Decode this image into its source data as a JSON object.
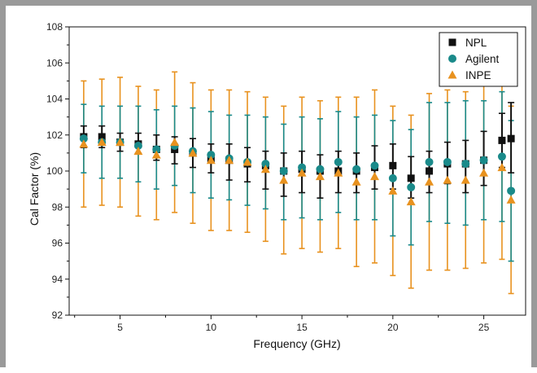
{
  "chart_data": {
    "type": "scatter",
    "title": "",
    "xlabel": "Frequency (GHz)",
    "ylabel": "Cal Factor (%)",
    "xlim": [
      2.2,
      27.3
    ],
    "ylim": [
      92,
      108
    ],
    "xticks": [
      5,
      10,
      15,
      20,
      25
    ],
    "yticks": [
      92,
      94,
      96,
      98,
      100,
      102,
      104,
      106,
      108
    ],
    "grid": false,
    "legend": "top-right",
    "error_bars": true,
    "series": [
      {
        "name": "NPL",
        "marker": "square",
        "color": "#111111",
        "points": [
          {
            "x": 3,
            "y": 101.9,
            "lo": 101.3,
            "hi": 102.5
          },
          {
            "x": 4,
            "y": 101.9,
            "lo": 101.3,
            "hi": 102.5
          },
          {
            "x": 5,
            "y": 101.6,
            "lo": 101.1,
            "hi": 102.1
          },
          {
            "x": 6,
            "y": 101.5,
            "lo": 101.0,
            "hi": 102.1
          },
          {
            "x": 7,
            "y": 101.2,
            "lo": 100.6,
            "hi": 102.0
          },
          {
            "x": 8,
            "y": 101.2,
            "lo": 100.4,
            "hi": 101.9
          },
          {
            "x": 9,
            "y": 101.0,
            "lo": 100.2,
            "hi": 101.8
          },
          {
            "x": 10,
            "y": 100.7,
            "lo": 99.9,
            "hi": 101.5
          },
          {
            "x": 11,
            "y": 100.6,
            "lo": 99.5,
            "hi": 101.5
          },
          {
            "x": 12,
            "y": 100.4,
            "lo": 99.4,
            "hi": 101.3
          },
          {
            "x": 13,
            "y": 100.3,
            "lo": 99.0,
            "hi": 101.1
          },
          {
            "x": 14,
            "y": 100.0,
            "lo": 98.6,
            "hi": 101.0
          },
          {
            "x": 15,
            "y": 100.1,
            "lo": 98.8,
            "hi": 101.1
          },
          {
            "x": 16,
            "y": 100.0,
            "lo": 98.5,
            "hi": 100.9
          },
          {
            "x": 17,
            "y": 100.0,
            "lo": 98.8,
            "hi": 101.1
          },
          {
            "x": 18,
            "y": 100.0,
            "lo": 98.8,
            "hi": 101.0
          },
          {
            "x": 19,
            "y": 100.2,
            "lo": 99.0,
            "hi": 101.4
          },
          {
            "x": 20,
            "y": 100.3,
            "lo": 99.0,
            "hi": 101.5
          },
          {
            "x": 21,
            "y": 99.6,
            "lo": 98.5,
            "hi": 100.8
          },
          {
            "x": 22,
            "y": 100.0,
            "lo": 98.8,
            "hi": 101.1
          },
          {
            "x": 23,
            "y": 100.4,
            "lo": 99.3,
            "hi": 101.6
          },
          {
            "x": 24,
            "y": 100.4,
            "lo": 98.8,
            "hi": 101.7
          },
          {
            "x": 25,
            "y": 100.6,
            "lo": 99.2,
            "hi": 102.2
          },
          {
            "x": 26,
            "y": 101.7,
            "lo": 100.2,
            "hi": 103.2
          },
          {
            "x": 26.5,
            "y": 101.8,
            "lo": 99.9,
            "hi": 103.8
          }
        ]
      },
      {
        "name": "Agilent",
        "marker": "circle",
        "color": "#1a8a8a",
        "points": [
          {
            "x": 3,
            "y": 101.8,
            "lo": 99.9,
            "hi": 103.7
          },
          {
            "x": 4,
            "y": 101.6,
            "lo": 99.6,
            "hi": 103.6
          },
          {
            "x": 5,
            "y": 101.6,
            "lo": 99.6,
            "hi": 103.6
          },
          {
            "x": 6,
            "y": 101.4,
            "lo": 99.4,
            "hi": 103.6
          },
          {
            "x": 7,
            "y": 101.2,
            "lo": 99.0,
            "hi": 103.4
          },
          {
            "x": 8,
            "y": 101.4,
            "lo": 99.2,
            "hi": 103.6
          },
          {
            "x": 9,
            "y": 101.1,
            "lo": 98.8,
            "hi": 103.5
          },
          {
            "x": 10,
            "y": 100.9,
            "lo": 98.5,
            "hi": 103.3
          },
          {
            "x": 11,
            "y": 100.7,
            "lo": 98.4,
            "hi": 103.1
          },
          {
            "x": 12,
            "y": 100.5,
            "lo": 98.1,
            "hi": 103.1
          },
          {
            "x": 13,
            "y": 100.4,
            "lo": 97.9,
            "hi": 103.0
          },
          {
            "x": 14,
            "y": 100.0,
            "lo": 97.3,
            "hi": 102.6
          },
          {
            "x": 15,
            "y": 100.2,
            "lo": 97.4,
            "hi": 103.0
          },
          {
            "x": 16,
            "y": 100.1,
            "lo": 97.3,
            "hi": 102.9
          },
          {
            "x": 17,
            "y": 100.5,
            "lo": 97.7,
            "hi": 103.3
          },
          {
            "x": 18,
            "y": 100.1,
            "lo": 97.3,
            "hi": 103.0
          },
          {
            "x": 19,
            "y": 100.3,
            "lo": 97.3,
            "hi": 103.1
          },
          {
            "x": 20,
            "y": 99.6,
            "lo": 96.4,
            "hi": 102.8
          },
          {
            "x": 21,
            "y": 99.1,
            "lo": 95.9,
            "hi": 102.3
          },
          {
            "x": 22,
            "y": 100.5,
            "lo": 97.2,
            "hi": 103.8
          },
          {
            "x": 23,
            "y": 100.5,
            "lo": 97.1,
            "hi": 103.8
          },
          {
            "x": 24,
            "y": 100.4,
            "lo": 97.0,
            "hi": 103.9
          },
          {
            "x": 25,
            "y": 100.6,
            "lo": 97.3,
            "hi": 103.9
          },
          {
            "x": 26,
            "y": 100.8,
            "lo": 97.2,
            "hi": 104.4
          },
          {
            "x": 26.5,
            "y": 98.9,
            "lo": 95.0,
            "hi": 102.8
          }
        ]
      },
      {
        "name": "INPE",
        "marker": "triangle",
        "color": "#e8921f",
        "points": [
          {
            "x": 3,
            "y": 101.5,
            "lo": 98.0,
            "hi": 105.0
          },
          {
            "x": 4,
            "y": 101.6,
            "lo": 98.1,
            "hi": 105.1
          },
          {
            "x": 5,
            "y": 101.6,
            "lo": 98.0,
            "hi": 105.2
          },
          {
            "x": 6,
            "y": 101.1,
            "lo": 97.5,
            "hi": 104.7
          },
          {
            "x": 7,
            "y": 100.9,
            "lo": 97.3,
            "hi": 104.5
          },
          {
            "x": 8,
            "y": 101.6,
            "lo": 97.7,
            "hi": 105.5
          },
          {
            "x": 9,
            "y": 101.0,
            "lo": 97.1,
            "hi": 104.9
          },
          {
            "x": 10,
            "y": 100.6,
            "lo": 96.7,
            "hi": 104.5
          },
          {
            "x": 11,
            "y": 100.6,
            "lo": 96.7,
            "hi": 104.5
          },
          {
            "x": 12,
            "y": 100.5,
            "lo": 96.6,
            "hi": 104.4
          },
          {
            "x": 13,
            "y": 100.1,
            "lo": 96.1,
            "hi": 104.1
          },
          {
            "x": 14,
            "y": 99.5,
            "lo": 95.4,
            "hi": 103.6
          },
          {
            "x": 15,
            "y": 99.9,
            "lo": 95.7,
            "hi": 104.1
          },
          {
            "x": 16,
            "y": 99.7,
            "lo": 95.5,
            "hi": 103.9
          },
          {
            "x": 17,
            "y": 99.9,
            "lo": 95.7,
            "hi": 104.1
          },
          {
            "x": 18,
            "y": 99.4,
            "lo": 94.7,
            "hi": 104.1
          },
          {
            "x": 19,
            "y": 99.7,
            "lo": 94.9,
            "hi": 104.5
          },
          {
            "x": 20,
            "y": 98.9,
            "lo": 94.2,
            "hi": 103.6
          },
          {
            "x": 21,
            "y": 98.3,
            "lo": 93.5,
            "hi": 103.1
          },
          {
            "x": 22,
            "y": 99.4,
            "lo": 94.5,
            "hi": 104.3
          },
          {
            "x": 23,
            "y": 99.5,
            "lo": 94.5,
            "hi": 104.5
          },
          {
            "x": 24,
            "y": 99.5,
            "lo": 94.6,
            "hi": 104.4
          },
          {
            "x": 25,
            "y": 99.9,
            "lo": 94.9,
            "hi": 104.9
          },
          {
            "x": 26,
            "y": 100.2,
            "lo": 95.1,
            "hi": 105.3
          },
          {
            "x": 26.5,
            "y": 98.4,
            "lo": 93.2,
            "hi": 103.6
          }
        ]
      }
    ]
  }
}
